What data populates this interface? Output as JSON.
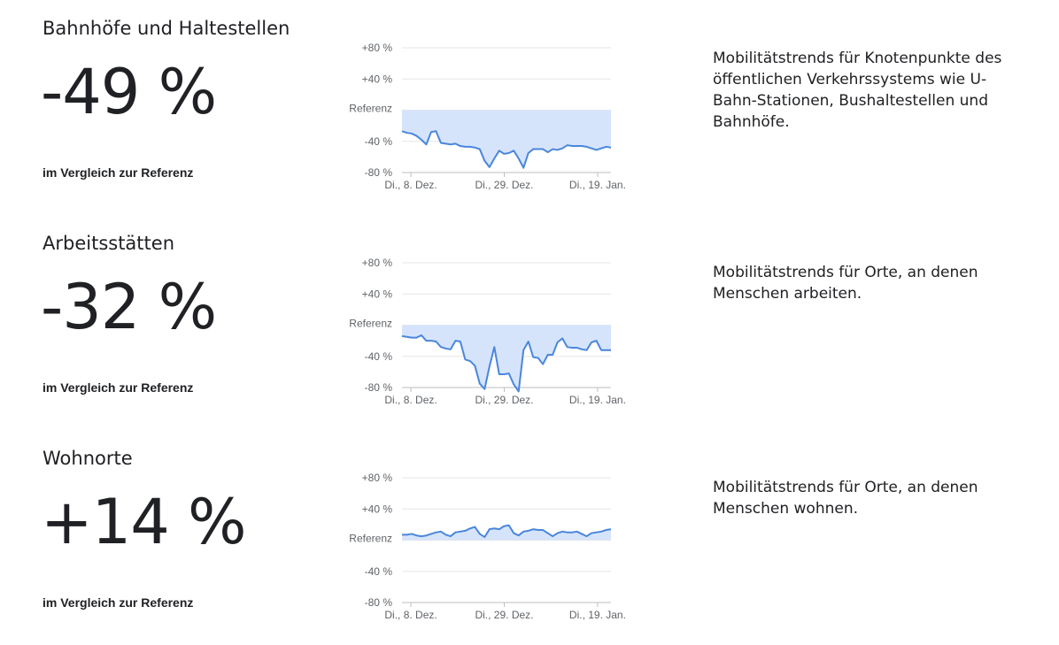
{
  "tick_labels": {
    "y": [
      "+80 %",
      "+40 %",
      "Referenz",
      "-40 %",
      "-80 %"
    ],
    "x": [
      "Di., 8. Dez.",
      "Di., 29. Dez.",
      "Di., 19. Jan."
    ]
  },
  "colors": {
    "line": "#4a86dc",
    "fill": "#d6e4fb",
    "grid": "#e6e6e6",
    "axis": "#bdbdbd",
    "tick_text": "#5f6368"
  },
  "sections": [
    {
      "title": "Bahnhöfe und Haltestellen",
      "value": "-49 %",
      "compare": "im Vergleich zur Referenz",
      "description": "Mobilitätstrends für Knotenpunkte des öffentlichen Verkehrssystems wie U-Bahn-Stationen, Bushaltestellen und Bahnhöfe."
    },
    {
      "title": "Arbeitsstätten",
      "value": "-32 %",
      "compare": "im Vergleich zur Referenz",
      "description": "Mobilitätstrends für Orte, an denen Menschen arbeiten."
    },
    {
      "title": "Wohnorte",
      "value": "+14 %",
      "compare": "im Vergleich zur Referenz",
      "description": "Mobilitätstrends für Orte, an denen Menschen wohnen."
    }
  ],
  "chart_data": [
    {
      "type": "area",
      "ylim": [
        -80,
        80
      ],
      "yticks": [
        80,
        40,
        0,
        -40,
        -80
      ],
      "x_start": "2020-12-06",
      "x_ticks": [
        "2020-12-08",
        "2020-12-29",
        "2021-01-19"
      ],
      "x_end": "2021-01-22",
      "values": [
        -27,
        -29,
        -30,
        -33,
        -38,
        -44,
        -28,
        -27,
        -42,
        -43,
        -44,
        -43,
        -46,
        -47,
        -47,
        -48,
        -50,
        -65,
        -73,
        -62,
        -52,
        -56,
        -55,
        -52,
        -62,
        -74,
        -55,
        -50,
        -50,
        -50,
        -54,
        -50,
        -51,
        -49,
        -45,
        -46,
        -46,
        -46,
        -47,
        -49,
        -51,
        -49,
        -47,
        -48
      ]
    },
    {
      "type": "area",
      "ylim": [
        -80,
        80
      ],
      "yticks": [
        80,
        40,
        0,
        -40,
        -80
      ],
      "x_start": "2020-12-06",
      "x_ticks": [
        "2020-12-08",
        "2020-12-29",
        "2021-01-19"
      ],
      "x_end": "2021-01-22",
      "values": [
        -14,
        -15,
        -16,
        -16,
        -13,
        -20,
        -20,
        -21,
        -28,
        -30,
        -31,
        -20,
        -21,
        -44,
        -46,
        -52,
        -75,
        -82,
        -53,
        -28,
        -63,
        -63,
        -62,
        -76,
        -85,
        -32,
        -21,
        -41,
        -42,
        -50,
        -38,
        -38,
        -22,
        -17,
        -28,
        -29,
        -29,
        -31,
        -32,
        -22,
        -20,
        -32,
        -32,
        -32
      ]
    },
    {
      "type": "area",
      "ylim": [
        -80,
        80
      ],
      "yticks": [
        80,
        40,
        0,
        -40,
        -80
      ],
      "x_start": "2020-12-06",
      "x_ticks": [
        "2020-12-08",
        "2020-12-29",
        "2021-01-19"
      ],
      "x_end": "2021-01-22",
      "values": [
        7,
        7,
        8,
        6,
        5,
        6,
        8,
        10,
        11,
        7,
        5,
        10,
        11,
        12,
        15,
        17,
        8,
        4,
        14,
        15,
        14,
        18,
        19,
        9,
        6,
        11,
        12,
        14,
        13,
        13,
        9,
        5,
        9,
        11,
        10,
        10,
        11,
        8,
        5,
        9,
        10,
        11,
        13,
        14
      ]
    }
  ]
}
